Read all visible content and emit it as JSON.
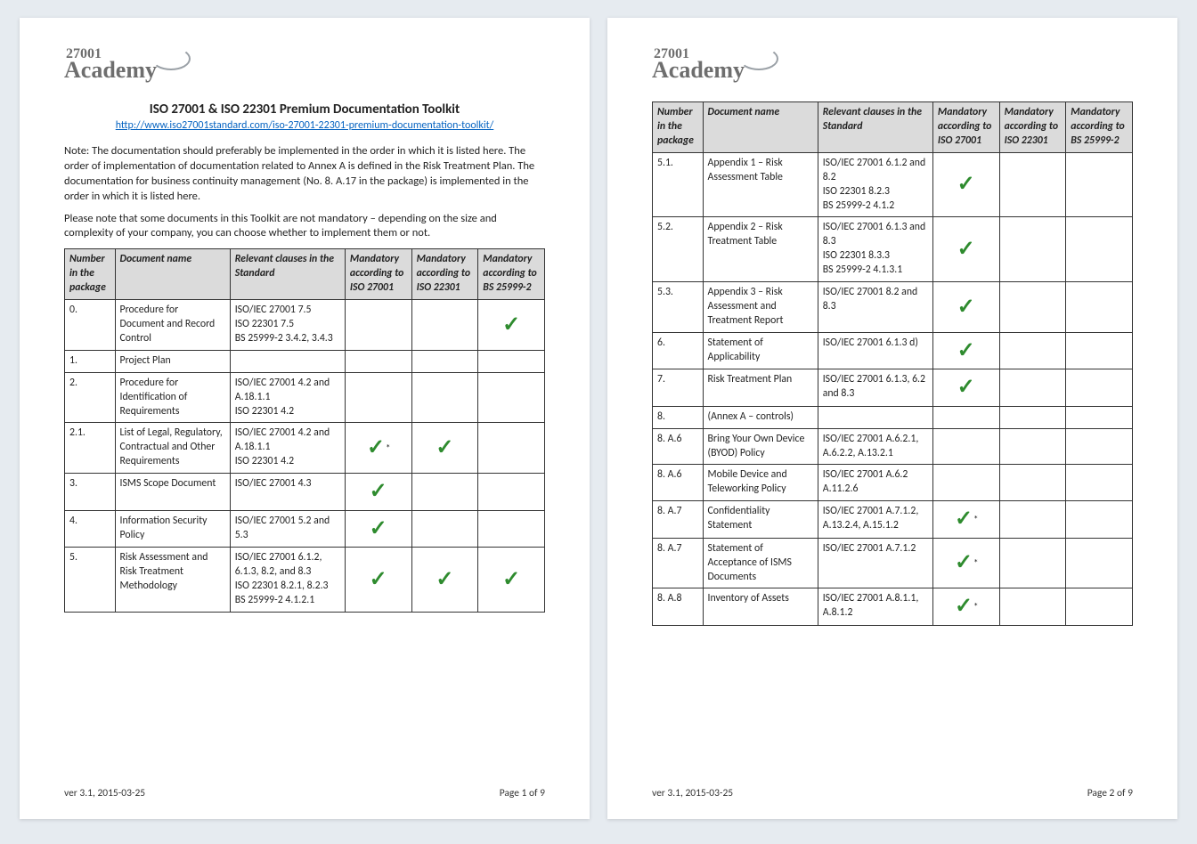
{
  "logo": {
    "line1": "27001",
    "line2": "Academy"
  },
  "header": {
    "title": "ISO 27001 & ISO 22301 Premium Documentation Toolkit",
    "url": "http://www.iso27001standard.com/iso-27001-22301-premium-documentation-toolkit/",
    "note1": "Note: The documentation should preferably be implemented in the order in which it is listed here. The order of implementation of documentation related to Annex A is defined in the Risk Treatment Plan.  The documentation for business continuity management (No. 8. A.17 in the package) is implemented in the order in which it is listed here.",
    "note2": "Please note that some documents in this Toolkit are not mandatory – depending on the size and complexity of your company, you can choose whether to implement them or not."
  },
  "columns": {
    "num": "Number in the package",
    "doc": "Document name",
    "clause": "Relevant clauses in the Standard",
    "m1": "Mandatory according to ISO 27001",
    "m2": "Mandatory according to ISO 22301",
    "m3": "Mandatory according to BS 25999-2"
  },
  "colors": {
    "header_bg": "#dbdbdb",
    "border": "#333333",
    "check": "#2e8b2e",
    "link": "#0563c1",
    "page_bg": "#ffffff",
    "body_bg": "#e6ebf0",
    "logo_text": "#6e6e6e"
  },
  "check_glyph": "✓",
  "star_glyph": "*",
  "page1_rows": [
    {
      "num": "0.",
      "doc": "Procedure for Document and Record Control",
      "clause": "ISO/IEC 27001  7.5\nISO 22301  7.5\nBS 25999-2  3.4.2, 3.4.3",
      "m1": "",
      "m2": "",
      "m3": "✓"
    },
    {
      "num": "1.",
      "doc": "Project Plan",
      "clause": "",
      "m1": "",
      "m2": "",
      "m3": ""
    },
    {
      "num": "2.",
      "doc": "Procedure for Identification of Requirements",
      "clause": "ISO/IEC 27001  4.2 and A.18.1.1\nISO 22301  4.2",
      "m1": "",
      "m2": "",
      "m3": ""
    },
    {
      "num": "2.1.",
      "doc": "List of Legal, Regulatory, Contractual and Other Requirements",
      "clause": "ISO/IEC 27001  4.2 and A.18.1.1\nISO 22301  4.2",
      "m1": "✓*",
      "m2": "✓",
      "m3": ""
    },
    {
      "num": "3.",
      "doc": "ISMS Scope Document",
      "clause": "ISO/IEC 27001  4.3",
      "m1": "✓",
      "m2": "",
      "m3": ""
    },
    {
      "num": "4.",
      "doc": "Information Security Policy",
      "clause": "ISO/IEC 27001  5.2 and 5.3",
      "m1": "✓",
      "m2": "",
      "m3": ""
    },
    {
      "num": "5.",
      "doc": "Risk Assessment and Risk Treatment Methodology",
      "clause": "ISO/IEC 27001 6.1.2, 6.1.3, 8.2, and 8.3\nISO 22301  8.2.1, 8.2.3\nBS 25999-2  4.1.2.1",
      "m1": "✓",
      "m2": "✓",
      "m3": "✓"
    }
  ],
  "page2_rows": [
    {
      "num": "5.1.",
      "doc": "Appendix 1 – Risk Assessment Table",
      "clause": "ISO/IEC 27001  6.1.2 and 8.2\nISO 22301  8.2.3\nBS 25999-2  4.1.2",
      "m1": "✓",
      "m2": "",
      "m3": ""
    },
    {
      "num": "5.2.",
      "doc": "Appendix 2 – Risk Treatment Table",
      "clause": "ISO/IEC 27001  6.1.3 and 8.3\nISO 22301  8.3.3\nBS 25999-2  4.1.3.1",
      "m1": "✓",
      "m2": "",
      "m3": ""
    },
    {
      "num": "5.3.",
      "doc": "Appendix 3 – Risk Assessment and Treatment Report",
      "clause": "ISO/IEC 27001  8.2 and 8.3",
      "m1": "✓",
      "m2": "",
      "m3": ""
    },
    {
      "num": "6.",
      "doc": "Statement of Applicability",
      "clause": "ISO/IEC 27001  6.1.3 d)",
      "m1": "✓",
      "m2": "",
      "m3": ""
    },
    {
      "num": "7.",
      "doc": "Risk Treatment Plan",
      "clause": "ISO/IEC 27001 6.1.3, 6.2 and 8.3",
      "m1": "✓",
      "m2": "",
      "m3": ""
    },
    {
      "num": "8.",
      "doc": "(Annex A – controls)",
      "clause": "",
      "m1": "",
      "m2": "",
      "m3": ""
    },
    {
      "num": "8. A.6",
      "doc": "Bring Your Own Device (BYOD) Policy",
      "clause": "ISO/IEC 27001 A.6.2.1, A.6.2.2, A.13.2.1",
      "m1": "",
      "m2": "",
      "m3": ""
    },
    {
      "num": "8. A.6",
      "doc": "Mobile Device and Teleworking Policy",
      "clause": "ISO/IEC 27001  A.6.2 A.11.2.6",
      "m1": "",
      "m2": "",
      "m3": ""
    },
    {
      "num": "8. A.7",
      "doc": "Confidentiality Statement",
      "clause": "ISO/IEC 27001 A.7.1.2, A.13.2.4, A.15.1.2",
      "m1": "✓*",
      "m2": "",
      "m3": ""
    },
    {
      "num": "8. A.7",
      "doc": "Statement of Acceptance of ISMS Documents",
      "clause": "ISO/IEC 27001 A.7.1.2",
      "m1": "✓*",
      "m2": "",
      "m3": ""
    },
    {
      "num": "8. A.8",
      "doc": "Inventory of Assets",
      "clause": "ISO/IEC 27001 A.8.1.1, A.8.1.2",
      "m1": "✓*",
      "m2": "",
      "m3": ""
    }
  ],
  "footer": {
    "version": "ver  3.1, 2015-03-25",
    "page1": "Page 1 of 9",
    "page2": "Page 2 of 9"
  }
}
